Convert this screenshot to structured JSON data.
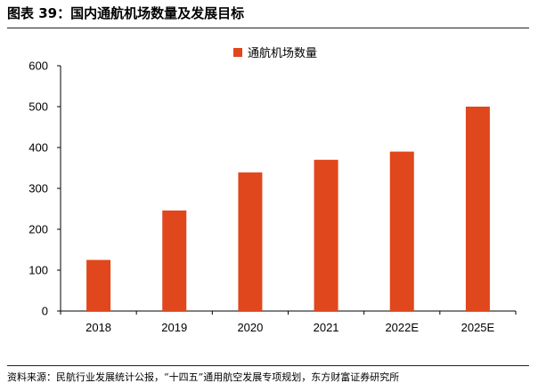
{
  "figure": {
    "title": "图表 39：国内通航机场数量及发展目标",
    "source": "资料来源：民航行业发展统计公报，“十四五”通用航空发展专项规划，东方财富证券研究所"
  },
  "colors": {
    "bar": "#E0471C",
    "axis": "#000000"
  },
  "chart_data": {
    "type": "bar",
    "categories": [
      "2018",
      "2019",
      "2020",
      "2021",
      "2022E",
      "2025E"
    ],
    "series": [
      {
        "name": "通航机场数量",
        "values": [
          125,
          246,
          339,
          370,
          390,
          500
        ]
      }
    ],
    "title": "",
    "xlabel": "",
    "ylabel": "",
    "ylim": [
      0,
      600
    ],
    "yticks": [
      "0",
      "100",
      "200",
      "300",
      "400",
      "500",
      "600"
    ],
    "grid": false,
    "legend": "top-center"
  }
}
